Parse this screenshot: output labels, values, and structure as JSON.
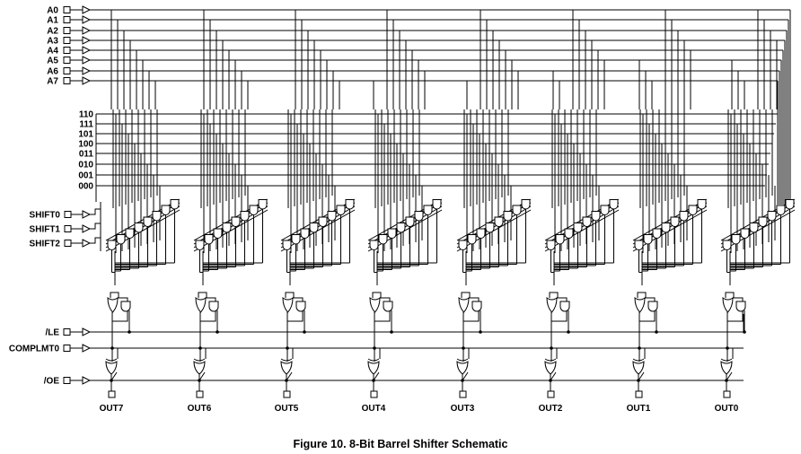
{
  "inputs_data": [
    "A0",
    "A1",
    "A2",
    "A3",
    "A4",
    "A5",
    "A6",
    "A7"
  ],
  "decode_codes": [
    "110",
    "111",
    "101",
    "100",
    "011",
    "010",
    "001",
    "000"
  ],
  "shift_inputs": [
    "SHIFT0",
    "SHIFT1",
    "SHIFT2"
  ],
  "control_inputs": {
    "le": "/LE",
    "complement": "COMPLMT0",
    "oe": "/OE"
  },
  "outputs": [
    "OUT7",
    "OUT6",
    "OUT5",
    "OUT4",
    "OUT3",
    "OUT2",
    "OUT1",
    "OUT0"
  ],
  "caption": "Figure 10.  8-Bit Barrel Shifter Schematic"
}
